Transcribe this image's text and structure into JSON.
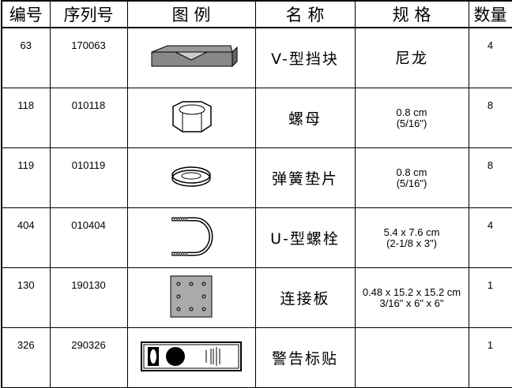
{
  "table": {
    "header": [
      "编号",
      "序列号",
      "图 例",
      "名 称",
      "规 格",
      "数量"
    ],
    "rows": [
      {
        "id": "63",
        "serial": "170063",
        "name": "V-型挡块",
        "spec": [
          "尼龙"
        ],
        "qty": "4"
      },
      {
        "id": "118",
        "serial": "010118",
        "name": "螺母",
        "spec": [
          "0.8 cm",
          "(5/16\")"
        ],
        "qty": "8"
      },
      {
        "id": "119",
        "serial": "010119",
        "name": "弹簧垫片",
        "spec": [
          "0.8 cm",
          "(5/16\")"
        ],
        "qty": "8"
      },
      {
        "id": "404",
        "serial": "010404",
        "name": "U-型螺栓",
        "spec": [
          "5.4 x 7.6 cm",
          "(2-1/8 x 3\")"
        ],
        "qty": "4"
      },
      {
        "id": "130",
        "serial": "190130",
        "name": "连接板",
        "spec": [
          "0.48 x 15.2 x 15.2 cm",
          "3/16\" x 6\" x 6\""
        ],
        "qty": "1"
      },
      {
        "id": "326",
        "serial": "290326",
        "name": "警告标贴",
        "spec": [],
        "qty": "1"
      }
    ]
  }
}
